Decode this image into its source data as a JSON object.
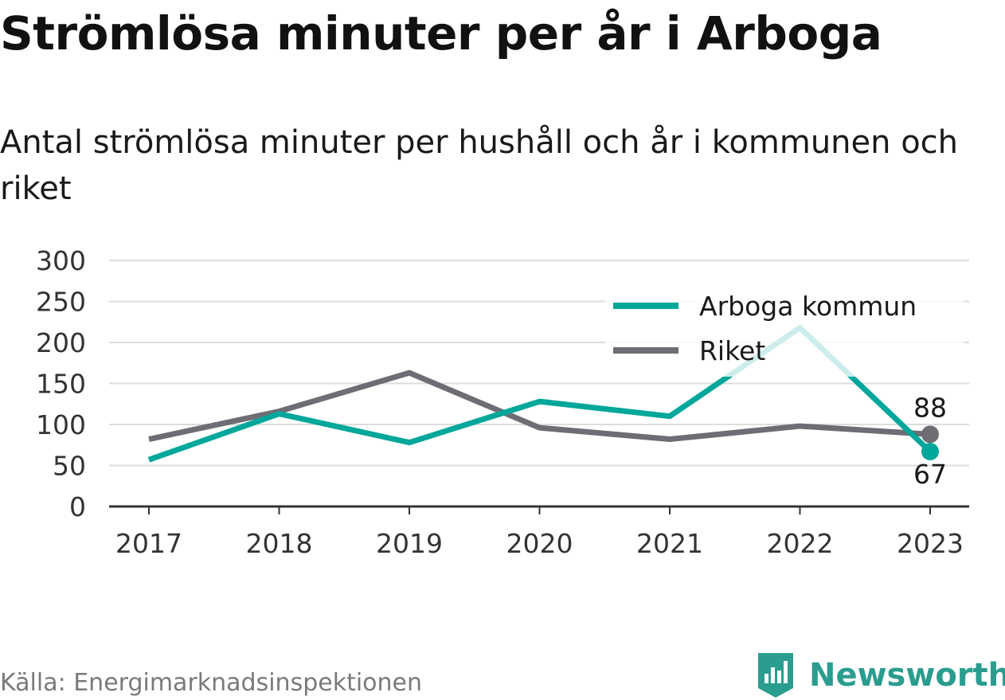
{
  "title": "Strömlösa minuter per år i Arboga",
  "subtitle": "Antal strömlösa minuter per hushåll och år i kommunen och riket",
  "source": "Källa: Energimarknadsinspektionen",
  "brand": "Newsworthy",
  "colors": {
    "arboga": "#00a79a",
    "riket": "#6e6d74",
    "grid": "#dddddd",
    "axis": "#333333",
    "brand": "#2a9d8f"
  },
  "chart_data": {
    "type": "line",
    "categories": [
      "2017",
      "2018",
      "2019",
      "2020",
      "2021",
      "2022",
      "2023"
    ],
    "yticks": [
      "0",
      "50",
      "100",
      "150",
      "200",
      "250",
      "300"
    ],
    "ylim": [
      0,
      300
    ],
    "grid": true,
    "legend_position": "top-right",
    "series": [
      {
        "name": "Arboga kommun",
        "key": "arboga",
        "values": [
          57,
          113,
          78,
          128,
          110,
          218,
          67
        ],
        "end_label": "67"
      },
      {
        "name": "Riket",
        "key": "riket",
        "values": [
          82,
          116,
          163,
          96,
          82,
          98,
          88
        ],
        "end_label": "88"
      }
    ]
  }
}
